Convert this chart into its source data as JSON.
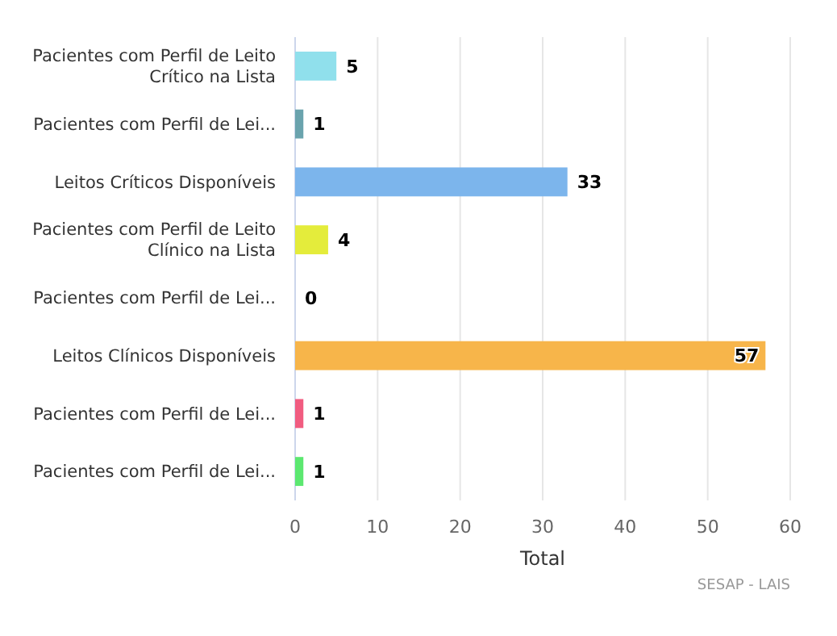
{
  "chart_data": {
    "type": "bar",
    "orientation": "horizontal",
    "categories": [
      "Pacientes com Perfil de Leito Crítico na Lista",
      "Pacientes com Perfil de Lei...",
      "Leitos Críticos Disponíveis",
      "Pacientes com Perfil de Leito Clínico na Lista",
      "Pacientes com Perfil de Lei...",
      "Leitos Clínicos Disponíveis",
      "Pacientes com Perfil de Lei...",
      "Pacientes com Perfil de Lei..."
    ],
    "values": [
      5,
      1,
      33,
      4,
      0,
      57,
      1,
      1
    ],
    "colors": [
      "#90e0ec",
      "#6aa3ad",
      "#7cb5ec",
      "#e4ec3b",
      "#434348",
      "#f7b54a",
      "#f15c80",
      "#5ce870"
    ],
    "xlabel": "Total",
    "xlim": [
      0,
      60
    ],
    "xticks": [
      0,
      10,
      20,
      30,
      40,
      50,
      60
    ],
    "grid": "x",
    "data_labels": true,
    "annotations": [
      "SESAP - LAIS"
    ]
  }
}
